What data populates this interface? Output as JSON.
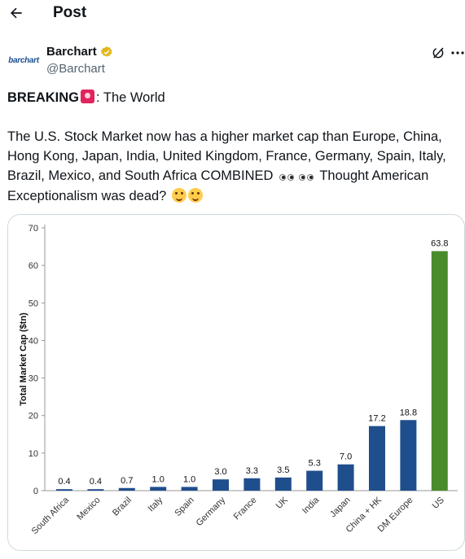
{
  "page": {
    "title": "Post"
  },
  "author": {
    "name": "Barchart",
    "handle": "@Barchart",
    "avatar_text": "barchart",
    "verified": true
  },
  "icons": {
    "back": "arrow-left-icon",
    "verified": "verified-badge-icon",
    "grok": "grok-icon",
    "more": "more-horizontal-icon"
  },
  "tweet": {
    "line1_bold": "BREAKING",
    "line1_rest": ": The World",
    "body_lines": [
      "The U.S. Stock Market now has a higher market cap than Europe, China,",
      "Hong Kong, Japan, India, United Kingdom, France, Germany, Spain, Italy,",
      "Brazil, Mexico, and South Africa COMBINED",
      " Thought American",
      "Exceptionalism was dead?"
    ]
  },
  "colors": {
    "bar": "#1f4e8c",
    "us_bar": "#4a8b2c",
    "verified": "#e2b719",
    "card_border": "#cfd9de",
    "handle": "#536471"
  },
  "chart_data": {
    "type": "bar",
    "title": "",
    "xlabel": "",
    "ylabel": "Total Market Cap ($tn)",
    "ylim": [
      0,
      70
    ],
    "yticks": [
      0,
      10,
      20,
      30,
      40,
      50,
      60,
      70
    ],
    "grid": false,
    "categories": [
      "South Africa",
      "Mexico",
      "Brazil",
      "Italy",
      "Spain",
      "Germany",
      "France",
      "UK",
      "India",
      "Japan",
      "China + HK",
      "DM Europe",
      "US"
    ],
    "values": [
      0.4,
      0.4,
      0.7,
      1.0,
      1.0,
      3.0,
      3.3,
      3.5,
      5.3,
      7.0,
      17.2,
      18.8,
      63.8
    ],
    "value_labels": [
      "0.4",
      "0.4",
      "0.7",
      "1.0",
      "1.0",
      "3.0",
      "3.3",
      "3.5",
      "5.3",
      "7.0",
      "17.2",
      "18.8",
      "63.8"
    ],
    "highlight": "US"
  }
}
